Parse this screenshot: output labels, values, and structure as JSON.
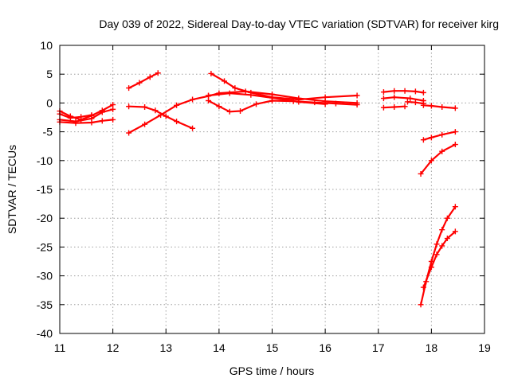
{
  "chart_data": {
    "type": "scatter",
    "title": "Day 039 of 2022, Sidereal Day-to-day VTEC variation (SDTVAR) for receiver kirg",
    "xlabel": "GPS time / hours",
    "ylabel": "SDTVAR / TECUs",
    "xlim": [
      11,
      19
    ],
    "ylim": [
      -40,
      10
    ],
    "xticks": [
      "11",
      "12",
      "13",
      "14",
      "15",
      "16",
      "17",
      "18",
      "19"
    ],
    "yticks": [
      "10",
      "5",
      "0",
      "-5",
      "-10",
      "-15",
      "-20",
      "-25",
      "-30",
      "-35",
      "-40"
    ],
    "grid": true,
    "marker": "plus",
    "color": "#ff0000",
    "series": [
      {
        "points": [
          [
            11.0,
            -1.4
          ],
          [
            11.2,
            -2.3
          ],
          [
            11.4,
            -2.9
          ],
          [
            11.6,
            -2.2
          ],
          [
            11.8,
            -1.3
          ],
          [
            12.0,
            -0.3
          ]
        ]
      },
      {
        "points": [
          [
            11.0,
            -2.9
          ],
          [
            11.3,
            -3.2
          ],
          [
            11.6,
            -2.7
          ],
          [
            11.8,
            -1.6
          ],
          [
            12.0,
            -1.1
          ]
        ]
      },
      {
        "points": [
          [
            11.0,
            -3.3
          ],
          [
            11.3,
            -3.5
          ],
          [
            11.6,
            -3.4
          ],
          [
            11.8,
            -3.1
          ],
          [
            12.0,
            -2.9
          ]
        ]
      },
      {
        "points": [
          [
            11.0,
            -1.9
          ],
          [
            11.2,
            -2.6
          ],
          [
            11.4,
            -2.4
          ],
          [
            11.6,
            -2.1
          ]
        ]
      },
      {
        "points": [
          [
            12.3,
            2.6
          ],
          [
            12.5,
            3.5
          ],
          [
            12.7,
            4.5
          ],
          [
            12.85,
            5.2
          ]
        ]
      },
      {
        "points": [
          [
            12.3,
            -0.6
          ],
          [
            12.6,
            -0.7
          ],
          [
            12.8,
            -1.3
          ],
          [
            13.0,
            -2.3
          ],
          [
            13.2,
            -3.2
          ],
          [
            13.5,
            -4.4
          ]
        ]
      },
      {
        "points": [
          [
            12.3,
            -5.2
          ],
          [
            12.6,
            -3.7
          ],
          [
            12.9,
            -2.1
          ],
          [
            13.2,
            -0.4
          ],
          [
            13.5,
            0.6
          ],
          [
            13.8,
            1.2
          ],
          [
            14.0,
            1.7
          ],
          [
            14.5,
            2.0
          ],
          [
            15.0,
            1.5
          ],
          [
            15.5,
            0.8
          ],
          [
            16.0,
            0.3
          ],
          [
            16.6,
            0.0
          ]
        ]
      },
      {
        "points": [
          [
            13.85,
            5.1
          ],
          [
            14.1,
            3.8
          ],
          [
            14.3,
            2.6
          ],
          [
            14.6,
            1.8
          ],
          [
            15.0,
            1.0
          ],
          [
            15.5,
            0.6
          ],
          [
            16.0,
            1.0
          ],
          [
            16.6,
            1.3
          ]
        ]
      },
      {
        "points": [
          [
            13.8,
            0.4
          ],
          [
            14.0,
            -0.6
          ],
          [
            14.2,
            -1.5
          ],
          [
            14.4,
            -1.4
          ],
          [
            14.7,
            -0.2
          ],
          [
            15.0,
            0.4
          ],
          [
            15.4,
            0.3
          ],
          [
            15.8,
            0.1
          ],
          [
            16.2,
            -0.1
          ],
          [
            16.6,
            -0.3
          ]
        ]
      },
      {
        "points": [
          [
            13.8,
            1.3
          ],
          [
            14.2,
            1.7
          ],
          [
            14.6,
            1.4
          ],
          [
            15.0,
            0.9
          ],
          [
            15.5,
            0.2
          ],
          [
            16.0,
            -0.2
          ]
        ]
      },
      {
        "points": [
          [
            17.1,
            1.9
          ],
          [
            17.3,
            2.1
          ],
          [
            17.5,
            2.1
          ],
          [
            17.7,
            2.0
          ],
          [
            17.85,
            1.8
          ]
        ]
      },
      {
        "points": [
          [
            17.1,
            0.8
          ],
          [
            17.3,
            1.0
          ],
          [
            17.6,
            0.8
          ],
          [
            17.85,
            0.4
          ]
        ]
      },
      {
        "points": [
          [
            17.1,
            -0.8
          ],
          [
            17.3,
            -0.7
          ],
          [
            17.5,
            -0.6
          ]
        ]
      },
      {
        "points": [
          [
            17.55,
            0.2
          ],
          [
            17.7,
            0.1
          ],
          [
            17.85,
            -0.1
          ]
        ]
      },
      {
        "points": [
          [
            17.85,
            -0.4
          ],
          [
            18.0,
            -0.5
          ],
          [
            18.2,
            -0.7
          ],
          [
            18.45,
            -0.9
          ]
        ]
      },
      {
        "points": [
          [
            17.85,
            -6.4
          ],
          [
            18.0,
            -6.0
          ],
          [
            18.2,
            -5.5
          ],
          [
            18.45,
            -5.0
          ]
        ]
      },
      {
        "points": [
          [
            17.8,
            -12.3
          ],
          [
            18.0,
            -10.0
          ],
          [
            18.2,
            -8.4
          ],
          [
            18.45,
            -7.2
          ]
        ]
      },
      {
        "points": [
          [
            17.8,
            -35.0
          ],
          [
            17.9,
            -31.0
          ],
          [
            18.0,
            -27.5
          ],
          [
            18.1,
            -24.5
          ],
          [
            18.2,
            -22.0
          ],
          [
            18.3,
            -20.0
          ],
          [
            18.45,
            -18.0
          ]
        ]
      },
      {
        "points": [
          [
            17.85,
            -32.0
          ],
          [
            18.0,
            -28.5
          ],
          [
            18.1,
            -26.3
          ],
          [
            18.2,
            -24.8
          ],
          [
            18.3,
            -23.5
          ],
          [
            18.45,
            -22.3
          ]
        ]
      }
    ]
  }
}
